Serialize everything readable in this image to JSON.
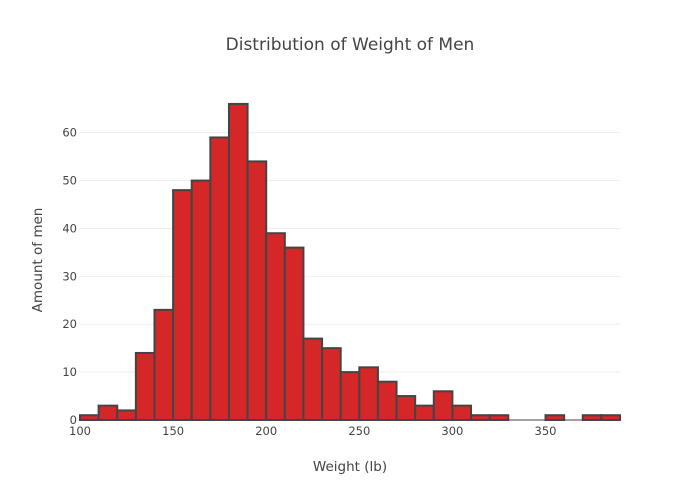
{
  "chart_data": {
    "type": "bar",
    "title": "Distribution of Weight of Men",
    "xlabel": "Weight (lb)",
    "ylabel": "Amount of men",
    "xlim": [
      100,
      390
    ],
    "ylim": [
      0,
      71
    ],
    "bin_width": 10,
    "bins": [
      {
        "x": 100,
        "value": 1
      },
      {
        "x": 110,
        "value": 3
      },
      {
        "x": 120,
        "value": 2
      },
      {
        "x": 130,
        "value": 14
      },
      {
        "x": 140,
        "value": 23
      },
      {
        "x": 150,
        "value": 48
      },
      {
        "x": 160,
        "value": 50
      },
      {
        "x": 170,
        "value": 59
      },
      {
        "x": 180,
        "value": 66
      },
      {
        "x": 190,
        "value": 54
      },
      {
        "x": 200,
        "value": 39
      },
      {
        "x": 210,
        "value": 36
      },
      {
        "x": 220,
        "value": 17
      },
      {
        "x": 230,
        "value": 15
      },
      {
        "x": 240,
        "value": 10
      },
      {
        "x": 250,
        "value": 11
      },
      {
        "x": 260,
        "value": 8
      },
      {
        "x": 270,
        "value": 5
      },
      {
        "x": 280,
        "value": 3
      },
      {
        "x": 290,
        "value": 6
      },
      {
        "x": 300,
        "value": 3
      },
      {
        "x": 310,
        "value": 1
      },
      {
        "x": 320,
        "value": 1
      },
      {
        "x": 330,
        "value": 0
      },
      {
        "x": 340,
        "value": 0
      },
      {
        "x": 350,
        "value": 1
      },
      {
        "x": 360,
        "value": 0
      },
      {
        "x": 370,
        "value": 1
      },
      {
        "x": 380,
        "value": 1
      }
    ],
    "x_ticks": [
      "100",
      "150",
      "200",
      "250",
      "300",
      "350"
    ],
    "y_ticks": [
      "0",
      "10",
      "20",
      "30",
      "40",
      "50",
      "60"
    ],
    "grid": true,
    "bar_color": "#d62728",
    "bar_edge_color": "#444444"
  }
}
